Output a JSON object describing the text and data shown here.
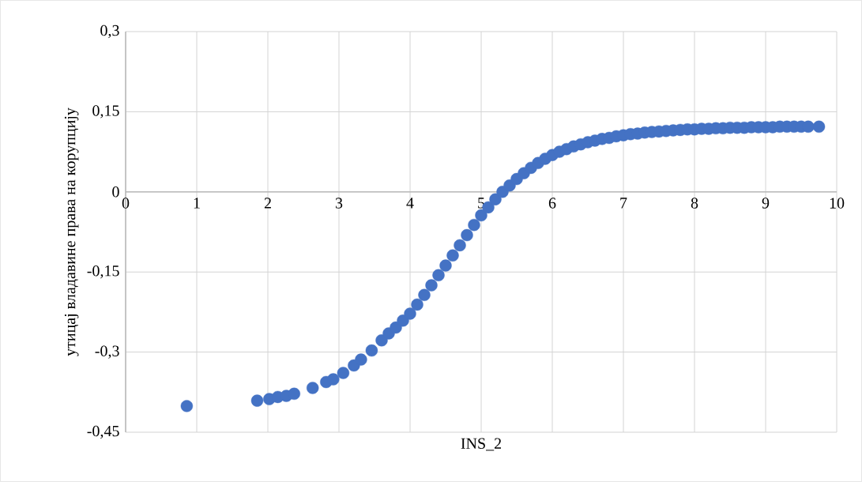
{
  "chart_data": {
    "type": "scatter",
    "xlabel": "INS_2",
    "ylabel": "утицај владавине права на корупцију",
    "x": [
      0.86,
      1.85,
      2.02,
      2.14,
      2.26,
      2.37,
      2.63,
      2.82,
      2.92,
      3.06,
      3.21,
      3.31,
      3.46,
      3.6,
      3.7,
      3.8,
      3.9,
      4.0,
      4.1,
      4.2,
      4.3,
      4.4,
      4.5,
      4.6,
      4.7,
      4.8,
      4.9,
      5.0,
      5.1,
      5.2,
      5.3,
      5.4,
      5.5,
      5.6,
      5.7,
      5.8,
      5.9,
      6.0,
      6.1,
      6.2,
      6.3,
      6.4,
      6.5,
      6.6,
      6.7,
      6.8,
      6.9,
      7.0,
      7.1,
      7.2,
      7.3,
      7.4,
      7.5,
      7.6,
      7.7,
      7.8,
      7.9,
      8.0,
      8.1,
      8.2,
      8.3,
      8.4,
      8.5,
      8.6,
      8.7,
      8.8,
      8.9,
      9.0,
      9.1,
      9.2,
      9.3,
      9.4,
      9.5,
      9.6,
      9.75
    ],
    "values": [
      -0.401,
      -0.391,
      -0.388,
      -0.384,
      -0.382,
      -0.378,
      -0.367,
      -0.356,
      -0.351,
      -0.339,
      -0.325,
      -0.314,
      -0.297,
      -0.278,
      -0.265,
      -0.254,
      -0.241,
      -0.228,
      -0.211,
      -0.193,
      -0.175,
      -0.156,
      -0.138,
      -0.119,
      -0.1,
      -0.081,
      -0.062,
      -0.044,
      -0.029,
      -0.014,
      0.0,
      0.012,
      0.024,
      0.035,
      0.045,
      0.054,
      0.062,
      0.069,
      0.075,
      0.08,
      0.085,
      0.089,
      0.093,
      0.096,
      0.099,
      0.101,
      0.104,
      0.106,
      0.108,
      0.109,
      0.111,
      0.112,
      0.113,
      0.114,
      0.115,
      0.116,
      0.117,
      0.117,
      0.118,
      0.118,
      0.119,
      0.119,
      0.12,
      0.12,
      0.12,
      0.121,
      0.121,
      0.121,
      0.121,
      0.122,
      0.122,
      0.122,
      0.122,
      0.122,
      0.122
    ],
    "color": "#4472c4",
    "grid": true,
    "xlim": [
      0,
      10
    ],
    "xticks": [
      0,
      1,
      2,
      3,
      4,
      5,
      6,
      7,
      8,
      9,
      10
    ],
    "ylim": [
      -0.45,
      0.3
    ],
    "yticks": [
      {
        "value": -0.45,
        "label": "-0,45"
      },
      {
        "value": -0.3,
        "label": "-0,3"
      },
      {
        "value": -0.15,
        "label": "-0,15"
      },
      {
        "value": 0,
        "label": "0"
      },
      {
        "value": 0.15,
        "label": "0,15"
      },
      {
        "value": 0.3,
        "label": "0,3"
      }
    ]
  }
}
